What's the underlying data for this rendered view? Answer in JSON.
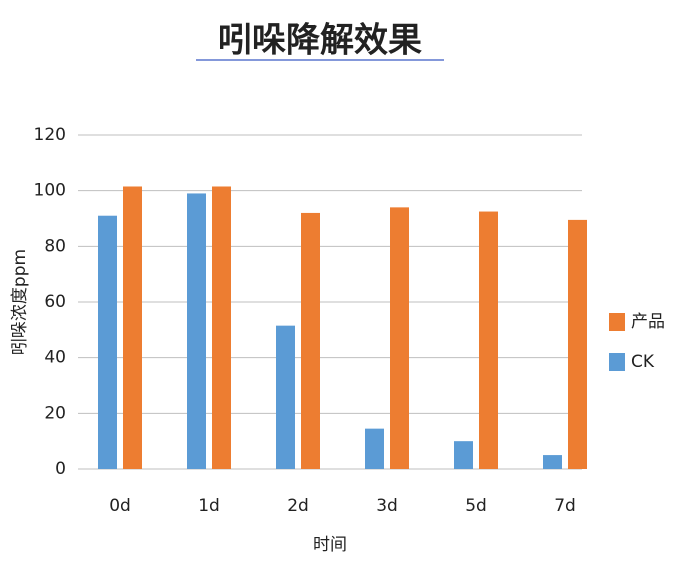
{
  "chart_data": {
    "type": "bar",
    "title": "吲哚降解效果",
    "y_label": "吲哚浓度ppm",
    "x_label": "时间",
    "categories": [
      "0d",
      "1d",
      "2d",
      "3d",
      "5d",
      "7d"
    ],
    "series": [
      {
        "name": "CK",
        "color": "#5b9bd5",
        "values": [
          91,
          99,
          51.5,
          14.5,
          10,
          5
        ]
      },
      {
        "name": "产品",
        "color": "#ed7d31",
        "values": [
          101.5,
          101.5,
          92,
          94,
          92.5,
          89.5
        ]
      }
    ],
    "ylim": [
      0,
      120
    ],
    "yticks": [
      0,
      20,
      40,
      60,
      80,
      100,
      120
    ],
    "grid": true,
    "legend": "right"
  }
}
